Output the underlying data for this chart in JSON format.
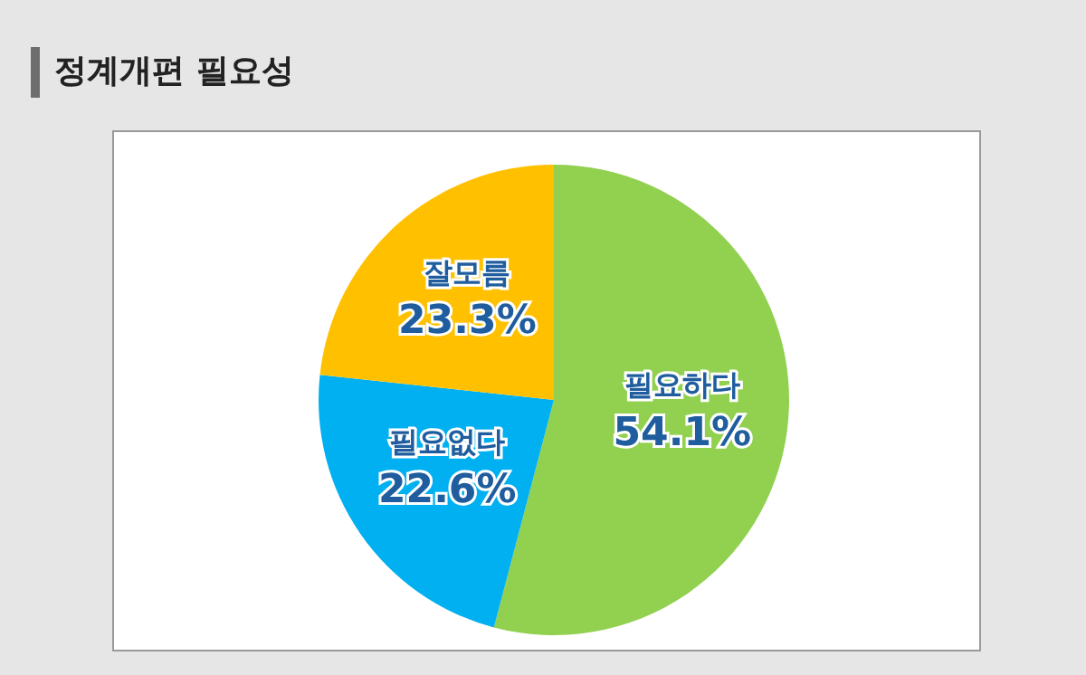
{
  "chart_data": {
    "type": "pie",
    "title": "정계개편 필요성",
    "categories": [
      "필요하다",
      "필요없다",
      "잘모름"
    ],
    "values": [
      54.1,
      22.6,
      23.3
    ],
    "colors": [
      "#92d050",
      "#00b0f0",
      "#ffc000"
    ],
    "value_labels": [
      "54.1%",
      "22.6%",
      "23.3%"
    ],
    "legend": false
  }
}
